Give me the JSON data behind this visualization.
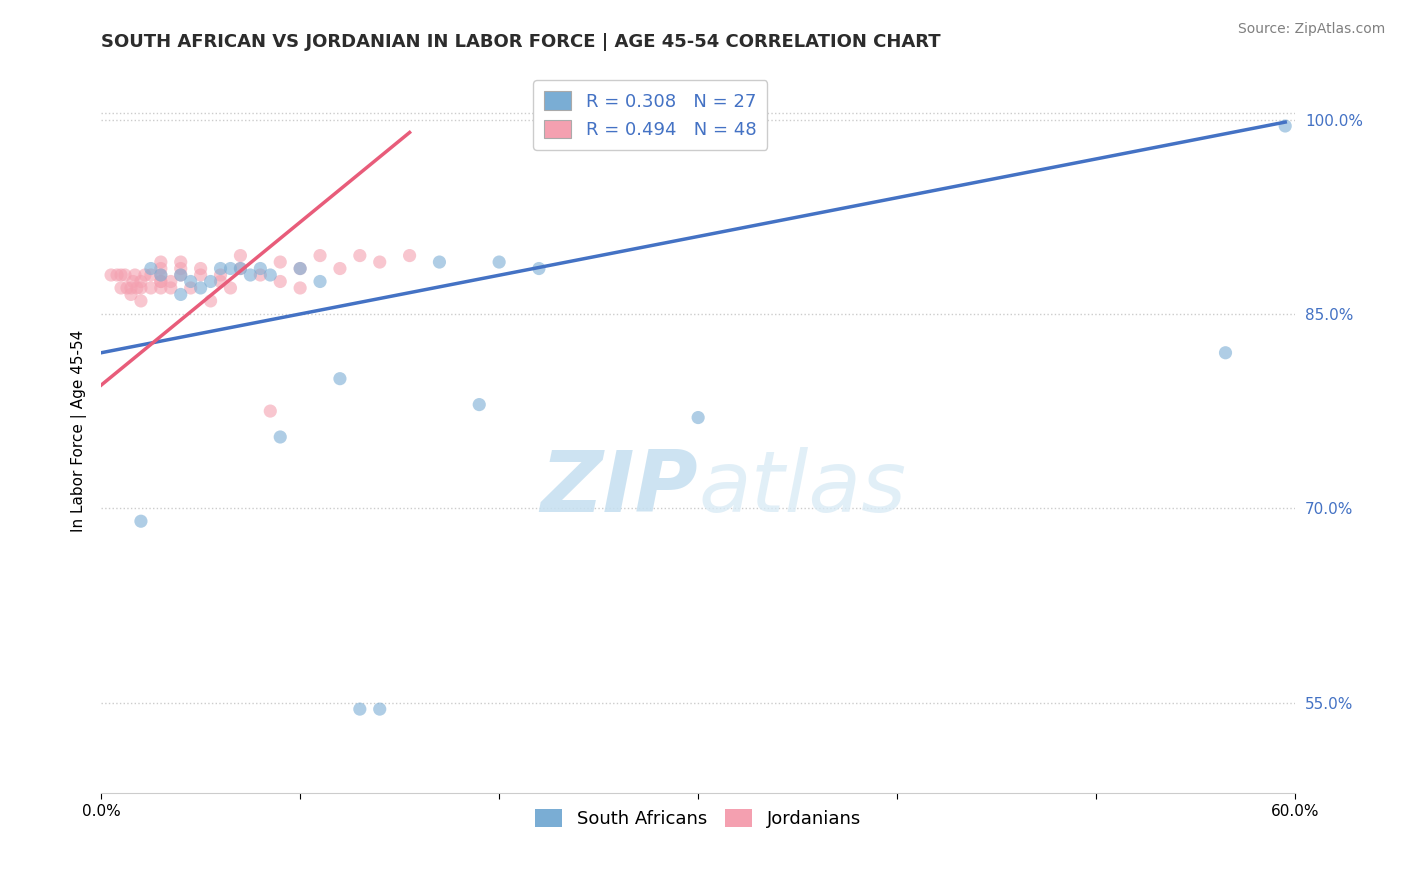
{
  "title": "SOUTH AFRICAN VS JORDANIAN IN LABOR FORCE | AGE 45-54 CORRELATION CHART",
  "source": "Source: ZipAtlas.com",
  "xlabel": "",
  "ylabel": "In Labor Force | Age 45-54",
  "xlim": [
    0.0,
    0.6
  ],
  "ylim": [
    0.48,
    1.04
  ],
  "xticks": [
    0.0,
    0.1,
    0.2,
    0.3,
    0.4,
    0.5,
    0.6
  ],
  "xticklabels": [
    "0.0%",
    "",
    "",
    "",
    "",
    "",
    "60.0%"
  ],
  "yticks": [
    0.55,
    0.7,
    0.85,
    1.0
  ],
  "yticklabels": [
    "55.0%",
    "70.0%",
    "85.0%",
    "100.0%"
  ],
  "r_blue": 0.308,
  "n_blue": 27,
  "r_pink": 0.494,
  "n_pink": 48,
  "blue_color": "#7aadd4",
  "pink_color": "#f4a0b0",
  "blue_line_color": "#4472c4",
  "pink_line_color": "#e85c7a",
  "watermark_zip": "ZIP",
  "watermark_atlas": "atlas",
  "legend_label_blue": "South Africans",
  "legend_label_pink": "Jordanians",
  "blue_scatter_x": [
    0.02,
    0.025,
    0.03,
    0.04,
    0.04,
    0.045,
    0.05,
    0.055,
    0.06,
    0.065,
    0.07,
    0.075,
    0.08,
    0.085,
    0.09,
    0.1,
    0.11,
    0.12,
    0.13,
    0.14,
    0.17,
    0.19,
    0.2,
    0.22,
    0.3,
    0.565,
    0.595
  ],
  "blue_scatter_y": [
    0.69,
    0.885,
    0.88,
    0.865,
    0.88,
    0.875,
    0.87,
    0.875,
    0.885,
    0.885,
    0.885,
    0.88,
    0.885,
    0.88,
    0.755,
    0.885,
    0.875,
    0.8,
    0.545,
    0.545,
    0.89,
    0.78,
    0.89,
    0.885,
    0.77,
    0.82,
    0.995
  ],
  "pink_scatter_x": [
    0.005,
    0.008,
    0.01,
    0.01,
    0.012,
    0.013,
    0.015,
    0.015,
    0.016,
    0.017,
    0.018,
    0.02,
    0.02,
    0.02,
    0.022,
    0.025,
    0.025,
    0.03,
    0.03,
    0.03,
    0.03,
    0.03,
    0.03,
    0.035,
    0.035,
    0.04,
    0.04,
    0.04,
    0.045,
    0.05,
    0.05,
    0.055,
    0.06,
    0.06,
    0.065,
    0.07,
    0.07,
    0.08,
    0.085,
    0.09,
    0.09,
    0.1,
    0.1,
    0.11,
    0.12,
    0.13,
    0.14,
    0.155
  ],
  "pink_scatter_y": [
    0.88,
    0.88,
    0.87,
    0.88,
    0.88,
    0.87,
    0.865,
    0.87,
    0.875,
    0.88,
    0.87,
    0.86,
    0.87,
    0.875,
    0.88,
    0.87,
    0.88,
    0.87,
    0.875,
    0.875,
    0.88,
    0.885,
    0.89,
    0.87,
    0.875,
    0.88,
    0.885,
    0.89,
    0.87,
    0.88,
    0.885,
    0.86,
    0.875,
    0.88,
    0.87,
    0.885,
    0.895,
    0.88,
    0.775,
    0.875,
    0.89,
    0.87,
    0.885,
    0.895,
    0.885,
    0.895,
    0.89,
    0.895
  ],
  "blue_line_x": [
    0.0,
    0.595
  ],
  "blue_line_y": [
    0.82,
    0.998
  ],
  "pink_line_x": [
    0.0,
    0.155
  ],
  "pink_line_y": [
    0.795,
    0.99
  ],
  "grid_color": "#cccccc",
  "background_color": "#ffffff",
  "title_fontsize": 13,
  "axis_label_fontsize": 11,
  "tick_fontsize": 11,
  "legend_fontsize": 13,
  "scatter_size": 90,
  "scatter_alpha": 0.6,
  "source_fontsize": 10
}
